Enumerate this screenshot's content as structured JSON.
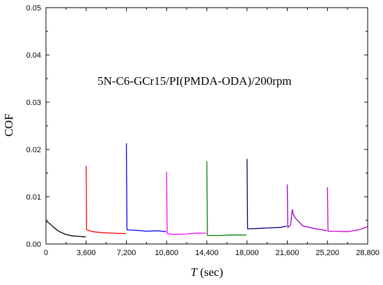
{
  "chart_data": {
    "type": "line",
    "title": "",
    "annotation": "5N-C6-GCr15/PI(PMDA-ODA)/200rpm",
    "xlabel_italic": "T",
    "xlabel_rest": " (sec)",
    "ylabel": "COF",
    "xlim": [
      0,
      28800
    ],
    "ylim": [
      0,
      0.05
    ],
    "x_ticks": [
      0,
      3600,
      7200,
      10800,
      14400,
      18000,
      21600,
      25200,
      28800
    ],
    "x_tick_labels": [
      "0",
      "3,600",
      "7,200",
      "10,800",
      "14,400",
      "18,000",
      "21,600",
      "25,200",
      "28,800"
    ],
    "y_ticks": [
      0,
      0.01,
      0.02,
      0.03,
      0.04,
      0.05
    ],
    "y_tick_labels": [
      "0.00",
      "0.01",
      "0.02",
      "0.03",
      "0.04",
      "0.05"
    ],
    "grid": false,
    "series": [
      {
        "color": "#000000",
        "points": [
          [
            0,
            0.0048
          ],
          [
            300,
            0.0044
          ],
          [
            700,
            0.0035
          ],
          [
            1200,
            0.0026
          ],
          [
            1800,
            0.002
          ],
          [
            2400,
            0.0017
          ],
          [
            3000,
            0.0016
          ],
          [
            3550,
            0.0015
          ]
        ]
      },
      {
        "color": "#ff0000",
        "points": [
          [
            3600,
            0.0165
          ],
          [
            3640,
            0.003
          ],
          [
            4200,
            0.0026
          ],
          [
            5000,
            0.0024
          ],
          [
            6000,
            0.0023
          ],
          [
            7150,
            0.0022
          ]
        ]
      },
      {
        "color": "#0000ff",
        "points": [
          [
            7200,
            0.0213
          ],
          [
            7250,
            0.003
          ],
          [
            8000,
            0.0029
          ],
          [
            9000,
            0.0027
          ],
          [
            10000,
            0.0028
          ],
          [
            10750,
            0.0026
          ]
        ]
      },
      {
        "color": "#ff00ff",
        "points": [
          [
            10800,
            0.0153
          ],
          [
            10850,
            0.0022
          ],
          [
            11500,
            0.002
          ],
          [
            12500,
            0.0021
          ],
          [
            13500,
            0.0023
          ],
          [
            14350,
            0.0023
          ]
        ]
      },
      {
        "color": "#008000",
        "points": [
          [
            14400,
            0.0175
          ],
          [
            14450,
            0.0018
          ],
          [
            15500,
            0.0018
          ],
          [
            16500,
            0.0019
          ],
          [
            17950,
            0.0019
          ]
        ]
      },
      {
        "color": "#000080",
        "points": [
          [
            18000,
            0.018
          ],
          [
            18050,
            0.0032
          ],
          [
            19000,
            0.0033
          ],
          [
            20000,
            0.0034
          ],
          [
            21000,
            0.0035
          ],
          [
            21550,
            0.0038
          ]
        ]
      },
      {
        "color": "#9900cc",
        "points": [
          [
            21600,
            0.0126
          ],
          [
            21650,
            0.0035
          ],
          [
            21900,
            0.004
          ],
          [
            22050,
            0.0073
          ],
          [
            22150,
            0.0062
          ],
          [
            22400,
            0.0053
          ],
          [
            23000,
            0.0038
          ],
          [
            24000,
            0.0033
          ],
          [
            25150,
            0.0028
          ]
        ]
      },
      {
        "color": "#cc00cc",
        "points": [
          [
            25200,
            0.012
          ],
          [
            25250,
            0.0027
          ],
          [
            26000,
            0.0027
          ],
          [
            27000,
            0.0026
          ],
          [
            28000,
            0.003
          ],
          [
            28800,
            0.0037
          ]
        ]
      }
    ]
  }
}
